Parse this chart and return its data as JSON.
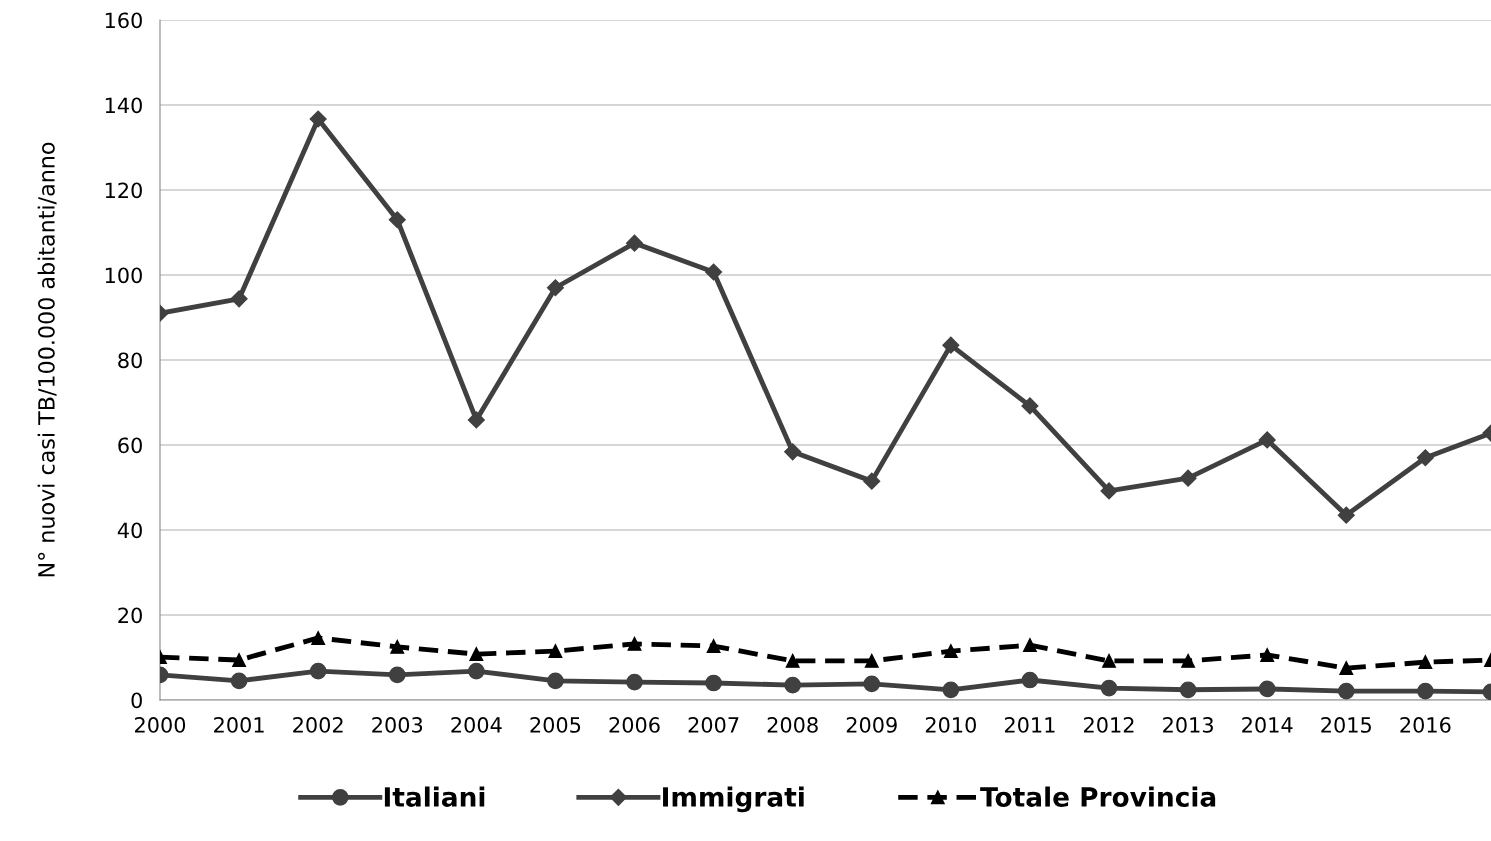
{
  "chart_data": {
    "type": "line",
    "ylabel": "N° nuovi casi TB/100.000 abitanti/anno",
    "x": [
      2000,
      2001,
      2002,
      2003,
      2004,
      2005,
      2006,
      2007,
      2008,
      2009,
      2010,
      2011,
      2012,
      2013,
      2014,
      2015,
      2016,
      2016.83
    ],
    "series": [
      {
        "name": "Italiani",
        "color": "#404040",
        "marker": "circle",
        "line_style": "solid",
        "values": [
          5.9,
          4.5,
          6.8,
          5.9,
          6.8,
          4.5,
          4.2,
          4.0,
          3.5,
          3.8,
          2.4,
          4.7,
          2.8,
          2.4,
          2.6,
          2.1,
          2.1,
          1.9
        ]
      },
      {
        "name": "Immigrati",
        "color": "#404040",
        "marker": "diamond",
        "line_style": "solid",
        "values": [
          91,
          94.4,
          136.7,
          113,
          65.9,
          97,
          107.5,
          100.7,
          58.4,
          51.5,
          83.5,
          69.2,
          49.2,
          52.2,
          61.2,
          43.5,
          57,
          62.8
        ]
      },
      {
        "name": "Totale Provincia",
        "color": "#000000",
        "marker": "triangle",
        "line_style": "dashed",
        "values": [
          10.1,
          9.4,
          14.6,
          12.5,
          10.8,
          11.5,
          13.2,
          12.7,
          9.2,
          9.2,
          11.5,
          12.9,
          9.2,
          9.2,
          10.6,
          7.5,
          8.9,
          9.4
        ]
      }
    ],
    "xlim": [
      2000,
      2016.83
    ],
    "xticks": [
      2000,
      2001,
      2002,
      2003,
      2004,
      2005,
      2006,
      2007,
      2008,
      2009,
      2010,
      2011,
      2012,
      2013,
      2014,
      2015,
      2016
    ],
    "ylim": [
      0,
      160
    ],
    "yticks": [
      0,
      20,
      40,
      60,
      80,
      100,
      120,
      140,
      160
    ],
    "grid": "y",
    "legend": "bottom"
  }
}
